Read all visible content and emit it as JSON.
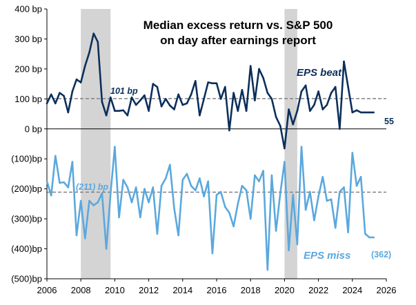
{
  "chart_data": {
    "type": "line",
    "title_line1": "Median excess return vs. S&P 500",
    "title_line2": "on day after earnings report",
    "xlabel": "",
    "ylabel": "",
    "xlim": [
      2006,
      2026
    ],
    "ylim": [
      -500,
      400
    ],
    "x_ticks": [
      "2006",
      "2008",
      "2010",
      "2012",
      "2014",
      "2016",
      "2018",
      "2020",
      "2022",
      "2024",
      "2026"
    ],
    "y_ticks": [
      {
        "value": 400,
        "label": "400 bp"
      },
      {
        "value": 300,
        "label": "300 bp"
      },
      {
        "value": 200,
        "label": "200 bp"
      },
      {
        "value": 100,
        "label": "100 bp"
      },
      {
        "value": 0,
        "label": "0 bp"
      },
      {
        "value": -100,
        "label": "(100)bp"
      },
      {
        "value": -200,
        "label": "(200)bp"
      },
      {
        "value": -300,
        "label": "(300)bp"
      },
      {
        "value": -400,
        "label": "(400)bp"
      },
      {
        "value": -500,
        "label": "(500)bp"
      }
    ],
    "recessions": [
      [
        2008.0,
        2009.75
      ],
      [
        2020.0,
        2020.75
      ]
    ],
    "colors": {
      "beat": "#0b2f5b",
      "miss": "#5aa8de",
      "recession": "#d4d4d4",
      "average": "#808080",
      "axis": "#000000"
    },
    "series": [
      {
        "name": "EPS beat",
        "key": "beat",
        "avg": 101,
        "avg_label": "101 bp",
        "end_label": "55",
        "x": [
          2006.0,
          2006.25,
          2006.5,
          2006.75,
          2007.0,
          2007.25,
          2007.5,
          2007.75,
          2008.0,
          2008.25,
          2008.5,
          2008.75,
          2009.0,
          2009.25,
          2009.5,
          2009.75,
          2010.0,
          2010.25,
          2010.5,
          2010.75,
          2011.0,
          2011.25,
          2011.5,
          2011.75,
          2012.0,
          2012.25,
          2012.5,
          2012.75,
          2013.0,
          2013.25,
          2013.5,
          2013.75,
          2014.0,
          2014.25,
          2014.5,
          2014.75,
          2015.0,
          2015.25,
          2015.5,
          2015.75,
          2016.0,
          2016.25,
          2016.5,
          2016.75,
          2017.0,
          2017.25,
          2017.5,
          2017.75,
          2018.0,
          2018.25,
          2018.5,
          2018.75,
          2019.0,
          2019.25,
          2019.5,
          2019.75,
          2020.0,
          2020.25,
          2020.5,
          2020.75,
          2021.0,
          2021.25,
          2021.5,
          2021.75,
          2022.0,
          2022.25,
          2022.5,
          2022.75,
          2023.0,
          2023.25,
          2023.5,
          2023.75,
          2024.0,
          2024.25,
          2024.5,
          2024.75,
          2025.0,
          2025.25
        ],
        "values": [
          85,
          115,
          85,
          120,
          110,
          55,
          125,
          165,
          155,
          210,
          255,
          318,
          290,
          90,
          45,
          105,
          60,
          60,
          62,
          45,
          105,
          80,
          95,
          112,
          60,
          150,
          140,
          75,
          100,
          78,
          65,
          115,
          80,
          85,
          115,
          160,
          45,
          100,
          155,
          152,
          152,
          100,
          140,
          -5,
          120,
          60,
          130,
          60,
          210,
          95,
          200,
          170,
          120,
          100,
          40,
          10,
          -65,
          65,
          15,
          60,
          125,
          145,
          60,
          80,
          125,
          65,
          80,
          120,
          140,
          0,
          225,
          140,
          55,
          62,
          55,
          55,
          55,
          55
        ]
      },
      {
        "name": "EPS miss",
        "key": "miss",
        "avg": -211,
        "avg_label": "(211)  bp",
        "end_label": "(362)",
        "x": [
          2006.0,
          2006.25,
          2006.5,
          2006.75,
          2007.0,
          2007.25,
          2007.5,
          2007.75,
          2008.0,
          2008.25,
          2008.5,
          2008.75,
          2009.0,
          2009.25,
          2009.5,
          2009.75,
          2010.0,
          2010.25,
          2010.5,
          2010.75,
          2011.0,
          2011.25,
          2011.5,
          2011.75,
          2012.0,
          2012.25,
          2012.5,
          2012.75,
          2013.0,
          2013.25,
          2013.5,
          2013.75,
          2014.0,
          2014.25,
          2014.5,
          2014.75,
          2015.0,
          2015.25,
          2015.5,
          2015.75,
          2016.0,
          2016.25,
          2016.5,
          2016.75,
          2017.0,
          2017.25,
          2017.5,
          2017.75,
          2018.0,
          2018.25,
          2018.5,
          2018.75,
          2019.0,
          2019.25,
          2019.5,
          2019.75,
          2020.0,
          2020.25,
          2020.5,
          2020.75,
          2021.0,
          2021.25,
          2021.5,
          2021.75,
          2022.0,
          2022.25,
          2022.5,
          2022.75,
          2023.0,
          2023.25,
          2023.5,
          2023.75,
          2024.0,
          2024.25,
          2024.5,
          2024.75,
          2025.0,
          2025.25
        ],
        "values": [
          -175,
          -222,
          -90,
          -180,
          -178,
          -195,
          -110,
          -355,
          -240,
          -365,
          -240,
          -255,
          -245,
          -215,
          -400,
          -215,
          -60,
          -295,
          -170,
          -195,
          -245,
          -195,
          -295,
          -200,
          -245,
          -195,
          -350,
          -190,
          -165,
          -120,
          -265,
          -355,
          -170,
          -150,
          -190,
          -205,
          -165,
          -225,
          -175,
          -415,
          -220,
          -210,
          -260,
          -280,
          -325,
          -250,
          -190,
          -205,
          -300,
          -155,
          -175,
          -140,
          -470,
          -155,
          -340,
          -215,
          -110,
          -405,
          -220,
          -385,
          -60,
          -270,
          -210,
          -305,
          -225,
          -160,
          -240,
          -235,
          -330,
          -210,
          -195,
          -345,
          -80,
          -190,
          -160,
          -350,
          -362,
          -362
        ]
      }
    ]
  }
}
